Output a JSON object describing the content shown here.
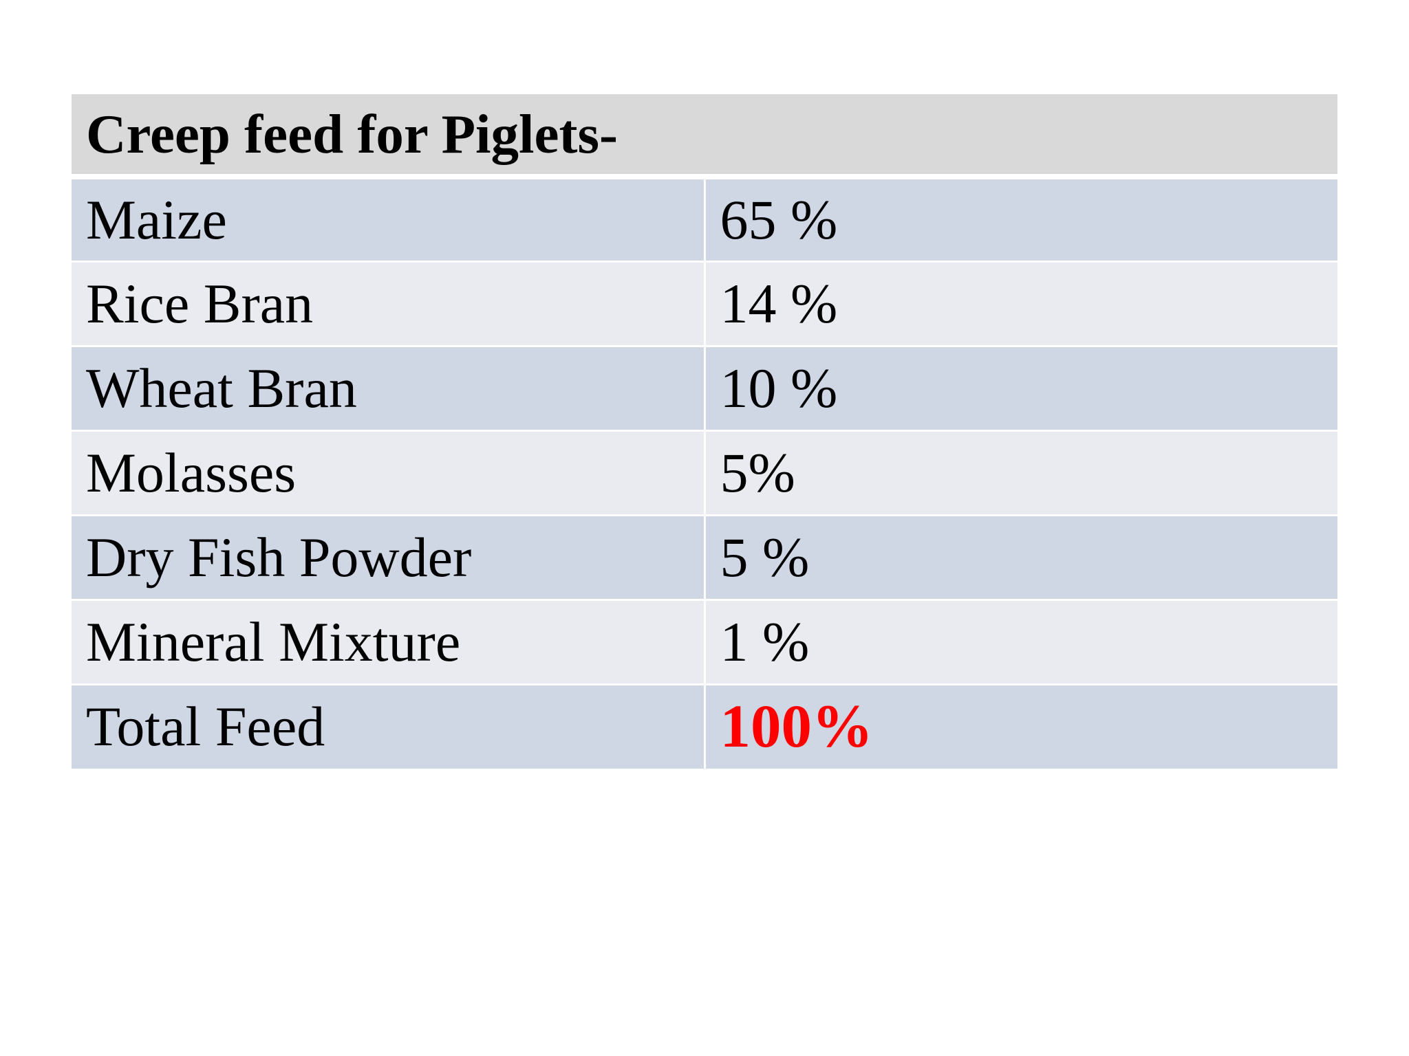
{
  "table": {
    "title": "Creep feed for Piglets-",
    "rows": [
      {
        "ingredient": "Maize",
        "percent": "65 %"
      },
      {
        "ingredient": "Rice Bran",
        "percent": "14 %"
      },
      {
        "ingredient": "Wheat Bran",
        "percent": "10 %"
      },
      {
        "ingredient": "Molasses",
        "percent": "5%"
      },
      {
        "ingredient": "Dry Fish Powder",
        "percent": "5 %"
      },
      {
        "ingredient": "Mineral Mixture",
        "percent": "1 %"
      }
    ],
    "total": {
      "label": "Total Feed",
      "value": "100%"
    }
  },
  "colors": {
    "header_bg": "#d9d9d9",
    "row_dark": "#cfd7e5",
    "row_light": "#e9ebf1",
    "total_value": "#ff0000"
  }
}
